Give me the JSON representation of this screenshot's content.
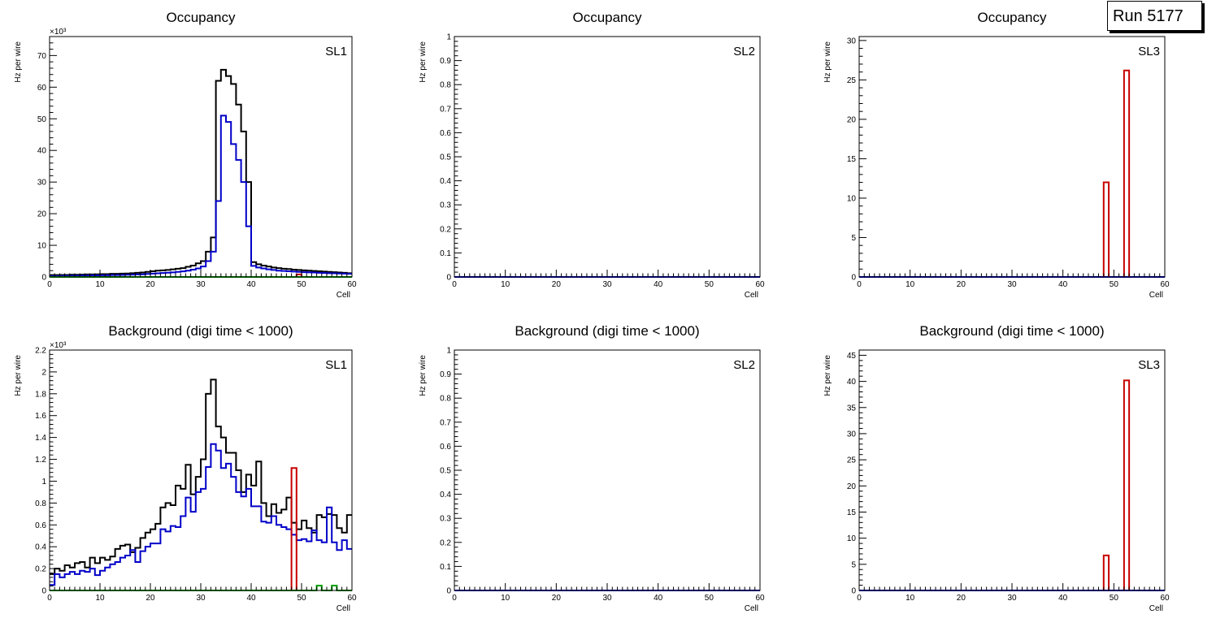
{
  "run_label": "Run 5177",
  "colors": {
    "black": "#000000",
    "blue": "#0000c8",
    "red": "#c80000",
    "green": "#00a000"
  },
  "chart_data": [
    {
      "type": "histogram",
      "title": "Occupancy",
      "label": "SL1",
      "xlabel": "Cell",
      "ylabel": "Hz per wire",
      "xlim": [
        0,
        60
      ],
      "ylim": [
        0,
        76000
      ],
      "yticks": [
        0,
        10000,
        20000,
        30000,
        40000,
        50000,
        60000,
        70000
      ],
      "ytick_labels": [
        "0",
        "10",
        "20",
        "30",
        "40",
        "50",
        "60",
        "70"
      ],
      "multiplier": "×10³",
      "series": [
        {
          "color": "black",
          "values": [
            600,
            600,
            650,
            650,
            700,
            700,
            750,
            800,
            800,
            850,
            900,
            900,
            1000,
            1000,
            1050,
            1100,
            1200,
            1300,
            1400,
            1600,
            1800,
            2000,
            2100,
            2200,
            2400,
            2600,
            2800,
            3200,
            3600,
            4300,
            5000,
            8000,
            12500,
            62000,
            65500,
            63500,
            61000,
            54500,
            46000,
            30000,
            4700,
            4000,
            3600,
            3300,
            3000,
            2800,
            2600,
            2500,
            2300,
            2200,
            2100,
            2000,
            1900,
            1800,
            1700,
            1600,
            1500,
            1400,
            1300,
            1200
          ]
        },
        {
          "color": "blue",
          "values": [
            300,
            300,
            350,
            350,
            400,
            400,
            450,
            450,
            500,
            500,
            550,
            550,
            600,
            600,
            650,
            700,
            750,
            800,
            850,
            950,
            1050,
            1150,
            1250,
            1350,
            1450,
            1600,
            1750,
            2000,
            2300,
            2700,
            3300,
            5000,
            8000,
            24000,
            51000,
            49000,
            42000,
            37000,
            30000,
            16000,
            3500,
            3000,
            2700,
            2400,
            2200,
            2000,
            1900,
            1800,
            1700,
            1600,
            1500,
            1450,
            1400,
            1300,
            1250,
            1200,
            1150,
            1100,
            1050,
            1000
          ]
        },
        {
          "color": "red",
          "values": [
            0,
            0,
            0,
            0,
            0,
            0,
            0,
            0,
            0,
            0,
            0,
            0,
            0,
            0,
            0,
            0,
            0,
            0,
            0,
            0,
            0,
            0,
            0,
            0,
            0,
            0,
            0,
            0,
            0,
            0,
            0,
            0,
            0,
            0,
            0,
            0,
            0,
            0,
            0,
            0,
            0,
            0,
            0,
            0,
            0,
            0,
            0,
            0,
            0,
            800,
            0,
            0,
            0,
            0,
            0,
            0,
            0,
            0,
            0,
            0
          ]
        },
        {
          "color": "green",
          "values": [
            0,
            0,
            0,
            0,
            0,
            0,
            0,
            0,
            0,
            0,
            0,
            0,
            0,
            0,
            0,
            0,
            0,
            0,
            0,
            0,
            0,
            0,
            0,
            0,
            0,
            0,
            0,
            0,
            0,
            0,
            0,
            0,
            0,
            0,
            0,
            0,
            0,
            0,
            0,
            0,
            0,
            0,
            0,
            0,
            0,
            0,
            0,
            0,
            0,
            0,
            0,
            0,
            0,
            0,
            0,
            0,
            0,
            0,
            0,
            0
          ]
        }
      ]
    },
    {
      "type": "histogram",
      "title": "Occupancy",
      "label": "SL2",
      "xlabel": "Cell",
      "ylabel": "Hz per wire",
      "xlim": [
        0,
        60
      ],
      "ylim": [
        0,
        1
      ],
      "yticks": [
        0,
        0.1,
        0.2,
        0.3,
        0.4,
        0.5,
        0.6,
        0.7,
        0.8,
        0.9,
        1
      ],
      "ytick_labels": [
        "0",
        "0.1",
        "0.2",
        "0.3",
        "0.4",
        "0.5",
        "0.6",
        "0.7",
        "0.8",
        "0.9",
        "1"
      ],
      "multiplier": "",
      "series": [
        {
          "color": "blue",
          "values": [
            0,
            0,
            0,
            0,
            0,
            0,
            0,
            0,
            0,
            0,
            0,
            0,
            0,
            0,
            0,
            0,
            0,
            0,
            0,
            0,
            0,
            0,
            0,
            0,
            0,
            0,
            0,
            0,
            0,
            0,
            0,
            0,
            0,
            0,
            0,
            0,
            0,
            0,
            0,
            0,
            0,
            0,
            0,
            0,
            0,
            0,
            0,
            0,
            0,
            0,
            0,
            0,
            0,
            0,
            0,
            0,
            0,
            0,
            0,
            0
          ]
        }
      ]
    },
    {
      "type": "histogram",
      "title": "Occupancy",
      "label": "SL3",
      "xlabel": "Cell",
      "ylabel": "Hz per wire",
      "xlim": [
        0,
        60
      ],
      "ylim": [
        0,
        30.5
      ],
      "yticks": [
        0,
        5,
        10,
        15,
        20,
        25,
        30
      ],
      "ytick_labels": [
        "0",
        "5",
        "10",
        "15",
        "20",
        "25",
        "30"
      ],
      "multiplier": "",
      "series": [
        {
          "color": "blue",
          "values": [
            0,
            0,
            0,
            0,
            0,
            0,
            0,
            0,
            0,
            0,
            0,
            0,
            0,
            0,
            0,
            0,
            0,
            0,
            0,
            0,
            0,
            0,
            0,
            0,
            0,
            0,
            0,
            0,
            0,
            0,
            0,
            0,
            0,
            0,
            0,
            0,
            0,
            0,
            0,
            0,
            0,
            0,
            0,
            0,
            0,
            0,
            0,
            0,
            0,
            0,
            0,
            0,
            0,
            0,
            0,
            0,
            0,
            0,
            0,
            0
          ]
        },
        {
          "color": "red",
          "values": [
            0,
            0,
            0,
            0,
            0,
            0,
            0,
            0,
            0,
            0,
            0,
            0,
            0,
            0,
            0,
            0,
            0,
            0,
            0,
            0,
            0,
            0,
            0,
            0,
            0,
            0,
            0,
            0,
            0,
            0,
            0,
            0,
            0,
            0,
            0,
            0,
            0,
            0,
            0,
            0,
            0,
            0,
            0,
            0,
            0,
            0,
            0,
            0,
            12,
            0,
            0,
            0,
            26.2,
            0,
            0,
            0,
            0,
            0,
            0,
            0
          ]
        }
      ]
    },
    {
      "type": "histogram",
      "title": "Background (digi time < 1000)",
      "label": "SL1",
      "xlabel": "Cell",
      "ylabel": "Hz per wire",
      "xlim": [
        0,
        60
      ],
      "ylim": [
        0,
        2200
      ],
      "yticks": [
        0,
        200,
        400,
        600,
        800,
        1000,
        1200,
        1400,
        1600,
        1800,
        2000,
        2200
      ],
      "ytick_labels": [
        "0",
        "0.2",
        "0.4",
        "0.6",
        "0.8",
        "1",
        "1.2",
        "1.4",
        "1.6",
        "1.8",
        "2",
        "2.2"
      ],
      "multiplier": "×10³",
      "series": [
        {
          "color": "black",
          "values": [
            150,
            200,
            180,
            230,
            210,
            250,
            260,
            210,
            300,
            250,
            300,
            280,
            310,
            380,
            410,
            420,
            350,
            390,
            480,
            530,
            560,
            610,
            760,
            800,
            780,
            960,
            930,
            1150,
            880,
            1040,
            1200,
            1800,
            1930,
            1500,
            1400,
            1260,
            1260,
            1100,
            900,
            1060,
            960,
            1180,
            800,
            680,
            790,
            710,
            740,
            850,
            620,
            560,
            640,
            570,
            530,
            690,
            670,
            700,
            690,
            570,
            530,
            690
          ]
        },
        {
          "color": "blue",
          "values": [
            50,
            150,
            120,
            150,
            170,
            150,
            180,
            170,
            200,
            140,
            180,
            210,
            240,
            260,
            300,
            320,
            370,
            260,
            360,
            400,
            430,
            430,
            560,
            540,
            590,
            580,
            680,
            850,
            720,
            900,
            930,
            1130,
            1340,
            1280,
            1120,
            1160,
            1040,
            900,
            860,
            930,
            770,
            770,
            630,
            620,
            680,
            600,
            580,
            560,
            510,
            460,
            470,
            450,
            550,
            460,
            440,
            760,
            440,
            370,
            460,
            380
          ]
        },
        {
          "color": "red",
          "values": [
            0,
            0,
            0,
            0,
            0,
            0,
            0,
            0,
            0,
            0,
            0,
            0,
            0,
            0,
            0,
            0,
            0,
            0,
            0,
            0,
            0,
            0,
            0,
            0,
            0,
            0,
            0,
            0,
            0,
            0,
            0,
            0,
            0,
            0,
            0,
            0,
            0,
            0,
            0,
            0,
            0,
            0,
            0,
            0,
            0,
            0,
            0,
            0,
            1120,
            0,
            0,
            0,
            0,
            0,
            0,
            0,
            0,
            0,
            0,
            0
          ]
        },
        {
          "color": "green",
          "values": [
            0,
            0,
            0,
            0,
            0,
            0,
            0,
            0,
            0,
            0,
            0,
            0,
            0,
            0,
            0,
            0,
            0,
            0,
            0,
            0,
            0,
            0,
            0,
            0,
            0,
            0,
            0,
            0,
            0,
            0,
            0,
            0,
            0,
            0,
            0,
            0,
            0,
            0,
            0,
            0,
            0,
            0,
            0,
            0,
            0,
            0,
            0,
            0,
            0,
            0,
            0,
            0,
            0,
            45,
            0,
            0,
            45,
            0,
            0,
            0
          ]
        }
      ]
    },
    {
      "type": "histogram",
      "title": "Background (digi time < 1000)",
      "label": "SL2",
      "xlabel": "Cell",
      "ylabel": "Hz per wire",
      "xlim": [
        0,
        60
      ],
      "ylim": [
        0,
        1
      ],
      "yticks": [
        0,
        0.1,
        0.2,
        0.3,
        0.4,
        0.5,
        0.6,
        0.7,
        0.8,
        0.9,
        1
      ],
      "ytick_labels": [
        "0",
        "0.1",
        "0.2",
        "0.3",
        "0.4",
        "0.5",
        "0.6",
        "0.7",
        "0.8",
        "0.9",
        "1"
      ],
      "multiplier": "",
      "series": [
        {
          "color": "blue",
          "values": [
            0,
            0,
            0,
            0,
            0,
            0,
            0,
            0,
            0,
            0,
            0,
            0,
            0,
            0,
            0,
            0,
            0,
            0,
            0,
            0,
            0,
            0,
            0,
            0,
            0,
            0,
            0,
            0,
            0,
            0,
            0,
            0,
            0,
            0,
            0,
            0,
            0,
            0,
            0,
            0,
            0,
            0,
            0,
            0,
            0,
            0,
            0,
            0,
            0,
            0,
            0,
            0,
            0,
            0,
            0,
            0,
            0,
            0,
            0,
            0
          ]
        }
      ]
    },
    {
      "type": "histogram",
      "title": "Background (digi time < 1000)",
      "label": "SL3",
      "xlabel": "Cell",
      "ylabel": "Hz per wire",
      "xlim": [
        0,
        60
      ],
      "ylim": [
        0,
        46
      ],
      "yticks": [
        0,
        5,
        10,
        15,
        20,
        25,
        30,
        35,
        40,
        45
      ],
      "ytick_labels": [
        "0",
        "5",
        "10",
        "15",
        "20",
        "25",
        "30",
        "35",
        "40",
        "45"
      ],
      "multiplier": "",
      "series": [
        {
          "color": "blue",
          "values": [
            0,
            0,
            0,
            0,
            0,
            0,
            0,
            0,
            0,
            0,
            0,
            0,
            0,
            0,
            0,
            0,
            0,
            0,
            0,
            0,
            0,
            0,
            0,
            0,
            0,
            0,
            0,
            0,
            0,
            0,
            0,
            0,
            0,
            0,
            0,
            0,
            0,
            0,
            0,
            0,
            0,
            0,
            0,
            0,
            0,
            0,
            0,
            0,
            0,
            0,
            0,
            0,
            0,
            0,
            0,
            0,
            0,
            0,
            0,
            0
          ]
        },
        {
          "color": "red",
          "values": [
            0,
            0,
            0,
            0,
            0,
            0,
            0,
            0,
            0,
            0,
            0,
            0,
            0,
            0,
            0,
            0,
            0,
            0,
            0,
            0,
            0,
            0,
            0,
            0,
            0,
            0,
            0,
            0,
            0,
            0,
            0,
            0,
            0,
            0,
            0,
            0,
            0,
            0,
            0,
            0,
            0,
            0,
            0,
            0,
            0,
            0,
            0,
            0,
            6.7,
            0,
            0,
            0,
            40.2,
            0,
            0,
            0,
            0,
            0,
            0,
            0
          ]
        }
      ]
    }
  ]
}
